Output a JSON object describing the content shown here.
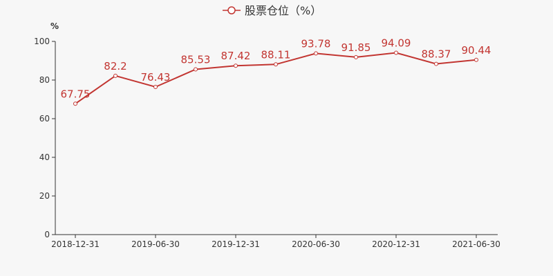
{
  "chart_data": {
    "type": "line",
    "title": "",
    "xlabel": "",
    "ylabel": "%",
    "ylim": [
      0,
      100
    ],
    "yticks": [
      0,
      20,
      40,
      60,
      80,
      100
    ],
    "grid": false,
    "legend_position": "top-center",
    "x_tick_labels": [
      "2018-12-31",
      "2019-06-30",
      "2019-12-31",
      "2020-06-30",
      "2020-12-31",
      "2021-06-30"
    ],
    "categories": [
      "2018-12-31",
      "2019-03-31",
      "2019-06-30",
      "2019-09-30",
      "2019-12-31",
      "2020-03-31",
      "2020-06-30",
      "2020-09-30",
      "2020-12-31",
      "2021-03-31",
      "2021-06-30"
    ],
    "series": [
      {
        "name": "股票仓位（%）",
        "color": "#c23531",
        "values": [
          67.75,
          82.2,
          76.43,
          85.53,
          87.42,
          88.11,
          93.78,
          91.85,
          94.09,
          88.37,
          90.44
        ],
        "labels": [
          "67.75",
          "82.2",
          "76.43",
          "85.53",
          "87.42",
          "88.11",
          "93.78",
          "91.85",
          "94.09",
          "88.37",
          "90.44"
        ]
      }
    ]
  }
}
